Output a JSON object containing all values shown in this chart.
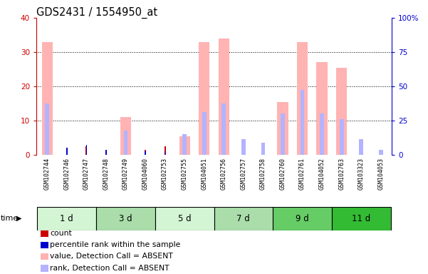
{
  "title": "GDS2431 / 1554950_at",
  "samples": [
    "GSM102744",
    "GSM102746",
    "GSM102747",
    "GSM102748",
    "GSM102749",
    "GSM104060",
    "GSM102753",
    "GSM102755",
    "GSM104051",
    "GSM102756",
    "GSM102757",
    "GSM102758",
    "GSM102760",
    "GSM102761",
    "GSM104052",
    "GSM102763",
    "GSM103323",
    "GSM104053"
  ],
  "groups": [
    {
      "label": "1 d",
      "start": 0,
      "end": 2,
      "color": "#d4f5d4"
    },
    {
      "label": "3 d",
      "start": 3,
      "end": 5,
      "color": "#aaddaa"
    },
    {
      "label": "5 d",
      "start": 6,
      "end": 8,
      "color": "#d4f5d4"
    },
    {
      "label": "7 d",
      "start": 9,
      "end": 11,
      "color": "#aaddaa"
    },
    {
      "label": "9 d",
      "start": 12,
      "end": 14,
      "color": "#66cc66"
    },
    {
      "label": "11 d",
      "start": 15,
      "end": 17,
      "color": "#33bb33"
    }
  ],
  "value_absent": [
    33.0,
    0,
    0,
    0,
    11.0,
    0,
    0,
    5.5,
    33.0,
    34.0,
    0,
    0,
    15.5,
    33.0,
    27.0,
    25.5,
    0,
    0
  ],
  "rank_absent": [
    15.0,
    0,
    0,
    0,
    7.0,
    0,
    0,
    6.0,
    12.5,
    15.0,
    4.5,
    3.5,
    12.0,
    19.0,
    12.0,
    10.5,
    4.5,
    1.5
  ],
  "count_present": [
    0,
    1.5,
    2.5,
    1.0,
    0,
    1.5,
    2.5,
    0,
    0,
    0,
    0,
    0,
    0,
    0,
    0,
    0,
    0,
    0
  ],
  "rank_present": [
    0,
    2.0,
    3.0,
    1.5,
    0,
    1.0,
    1.0,
    0,
    0,
    0,
    0,
    0,
    0,
    0,
    0,
    0,
    0,
    0
  ],
  "ylim_left": [
    0,
    40
  ],
  "ylim_right": [
    0,
    100
  ],
  "yticks_left": [
    0,
    10,
    20,
    30,
    40
  ],
  "ytick_labels_right": [
    "0",
    "25",
    "50",
    "75",
    "100%"
  ],
  "color_value_absent": "#ffb3b3",
  "color_rank_absent": "#b3b3ff",
  "color_count_present": "#cc0000",
  "color_rank_present": "#0000cc",
  "tick_color_left": "#cc0000",
  "tick_color_right": "#0000cc",
  "legend_items": [
    {
      "label": "count",
      "color": "#cc0000"
    },
    {
      "label": "percentile rank within the sample",
      "color": "#0000cc"
    },
    {
      "label": "value, Detection Call = ABSENT",
      "color": "#ffb3b3"
    },
    {
      "label": "rank, Detection Call = ABSENT",
      "color": "#b3b3ff"
    }
  ],
  "xticklabel_bg": "#cccccc"
}
